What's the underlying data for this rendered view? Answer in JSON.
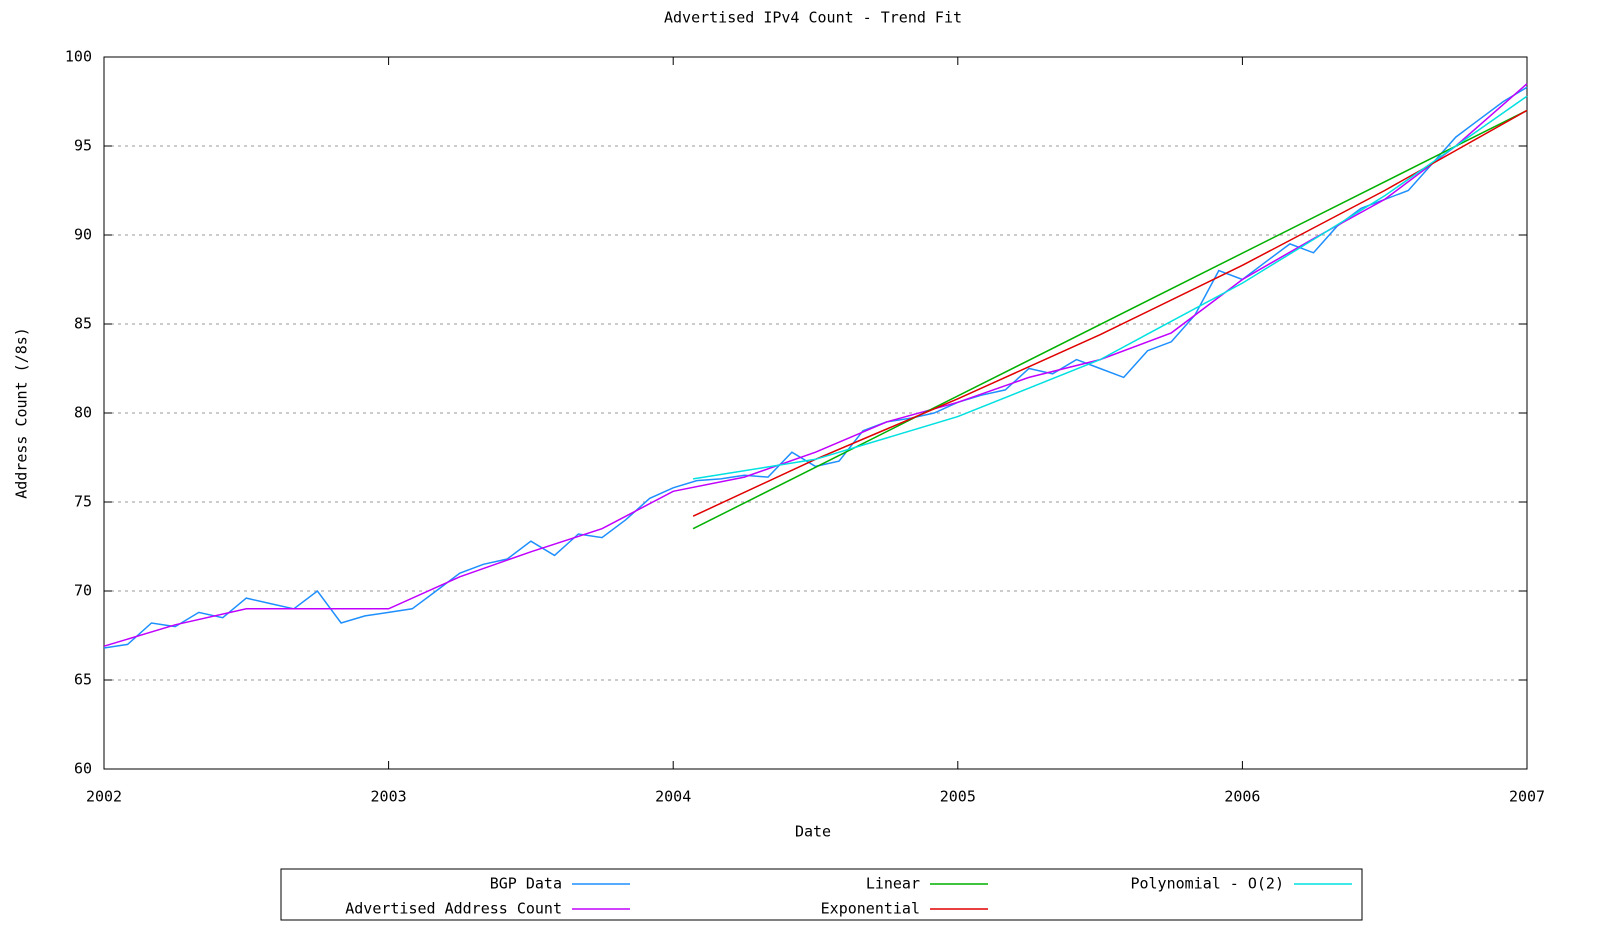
{
  "chart_data": {
    "type": "line",
    "title": "Advertised IPv4 Count - Trend Fit",
    "x_label": "Date",
    "y_label": "Address Count (/8s)",
    "xlim": [
      2002,
      2007
    ],
    "xticks": [
      2002,
      2003,
      2004,
      2005,
      2006,
      2007
    ],
    "ylim": [
      60,
      100
    ],
    "yticks": [
      60,
      65,
      70,
      75,
      80,
      85,
      90,
      95,
      100
    ],
    "grid": true,
    "series": [
      {
        "name": "BGP Data",
        "color": "#1e8fff",
        "x": [
          2002.0,
          2002.083,
          2002.167,
          2002.25,
          2002.333,
          2002.417,
          2002.5,
          2002.583,
          2002.667,
          2002.75,
          2002.833,
          2002.917,
          2003.0,
          2003.083,
          2003.167,
          2003.25,
          2003.333,
          2003.417,
          2003.5,
          2003.583,
          2003.667,
          2003.75,
          2003.833,
          2003.917,
          2004.0,
          2004.083,
          2004.167,
          2004.25,
          2004.333,
          2004.417,
          2004.5,
          2004.583,
          2004.667,
          2004.75,
          2004.833,
          2004.917,
          2005.0,
          2005.083,
          2005.167,
          2005.25,
          2005.333,
          2005.417,
          2005.5,
          2005.583,
          2005.667,
          2005.75,
          2005.833,
          2005.917,
          2006.0,
          2006.083,
          2006.167,
          2006.25,
          2006.333,
          2006.417,
          2006.5,
          2006.583,
          2006.667,
          2006.75,
          2006.833,
          2006.917,
          2007.0
        ],
        "values": [
          66.8,
          67.0,
          68.2,
          68.0,
          68.8,
          68.5,
          69.6,
          69.3,
          69.0,
          70.0,
          68.2,
          68.6,
          68.8,
          69.0,
          70.0,
          71.0,
          71.5,
          71.8,
          72.8,
          72.0,
          73.2,
          73.0,
          74.0,
          75.2,
          75.8,
          76.2,
          76.3,
          76.5,
          76.4,
          77.8,
          77.0,
          77.3,
          79.0,
          79.5,
          79.7,
          80.0,
          80.6,
          81.0,
          81.3,
          82.5,
          82.2,
          83.0,
          82.5,
          82.0,
          83.5,
          84.0,
          85.5,
          88.0,
          87.5,
          88.5,
          89.5,
          89.0,
          90.5,
          91.5,
          92.0,
          92.5,
          94.0,
          95.5,
          96.5,
          97.5,
          98.3
        ]
      },
      {
        "name": "Advertised Address Count",
        "color": "#c000ff",
        "x": [
          2002.0,
          2002.25,
          2002.5,
          2002.75,
          2003.0,
          2003.25,
          2003.5,
          2003.75,
          2004.0,
          2004.25,
          2004.5,
          2004.75,
          2005.0,
          2005.25,
          2005.5,
          2005.75,
          2006.0,
          2006.25,
          2006.5,
          2006.75,
          2007.0
        ],
        "values": [
          66.9,
          68.1,
          69.0,
          69.0,
          69.0,
          70.8,
          72.2,
          73.5,
          75.6,
          76.4,
          77.8,
          79.5,
          80.6,
          82.0,
          83.0,
          84.5,
          87.5,
          89.8,
          92.0,
          95.0,
          98.5
        ]
      },
      {
        "name": "Linear",
        "color": "#00b000",
        "x": [
          2004.07,
          2007.0
        ],
        "values": [
          73.5,
          97.0
        ]
      },
      {
        "name": "Exponential",
        "color": "#e00000",
        "x": [
          2004.07,
          2004.5,
          2005.0,
          2005.5,
          2006.0,
          2006.5,
          2007.0
        ],
        "values": [
          74.2,
          77.4,
          80.8,
          84.4,
          88.3,
          92.5,
          97.0
        ]
      },
      {
        "name": "Polynomial - O(2)",
        "color": "#00e0e0",
        "x": [
          2004.07,
          2004.5,
          2005.0,
          2005.5,
          2006.0,
          2006.5,
          2007.0
        ],
        "values": [
          76.3,
          77.4,
          79.8,
          83.0,
          87.3,
          92.2,
          97.8
        ]
      }
    ]
  }
}
